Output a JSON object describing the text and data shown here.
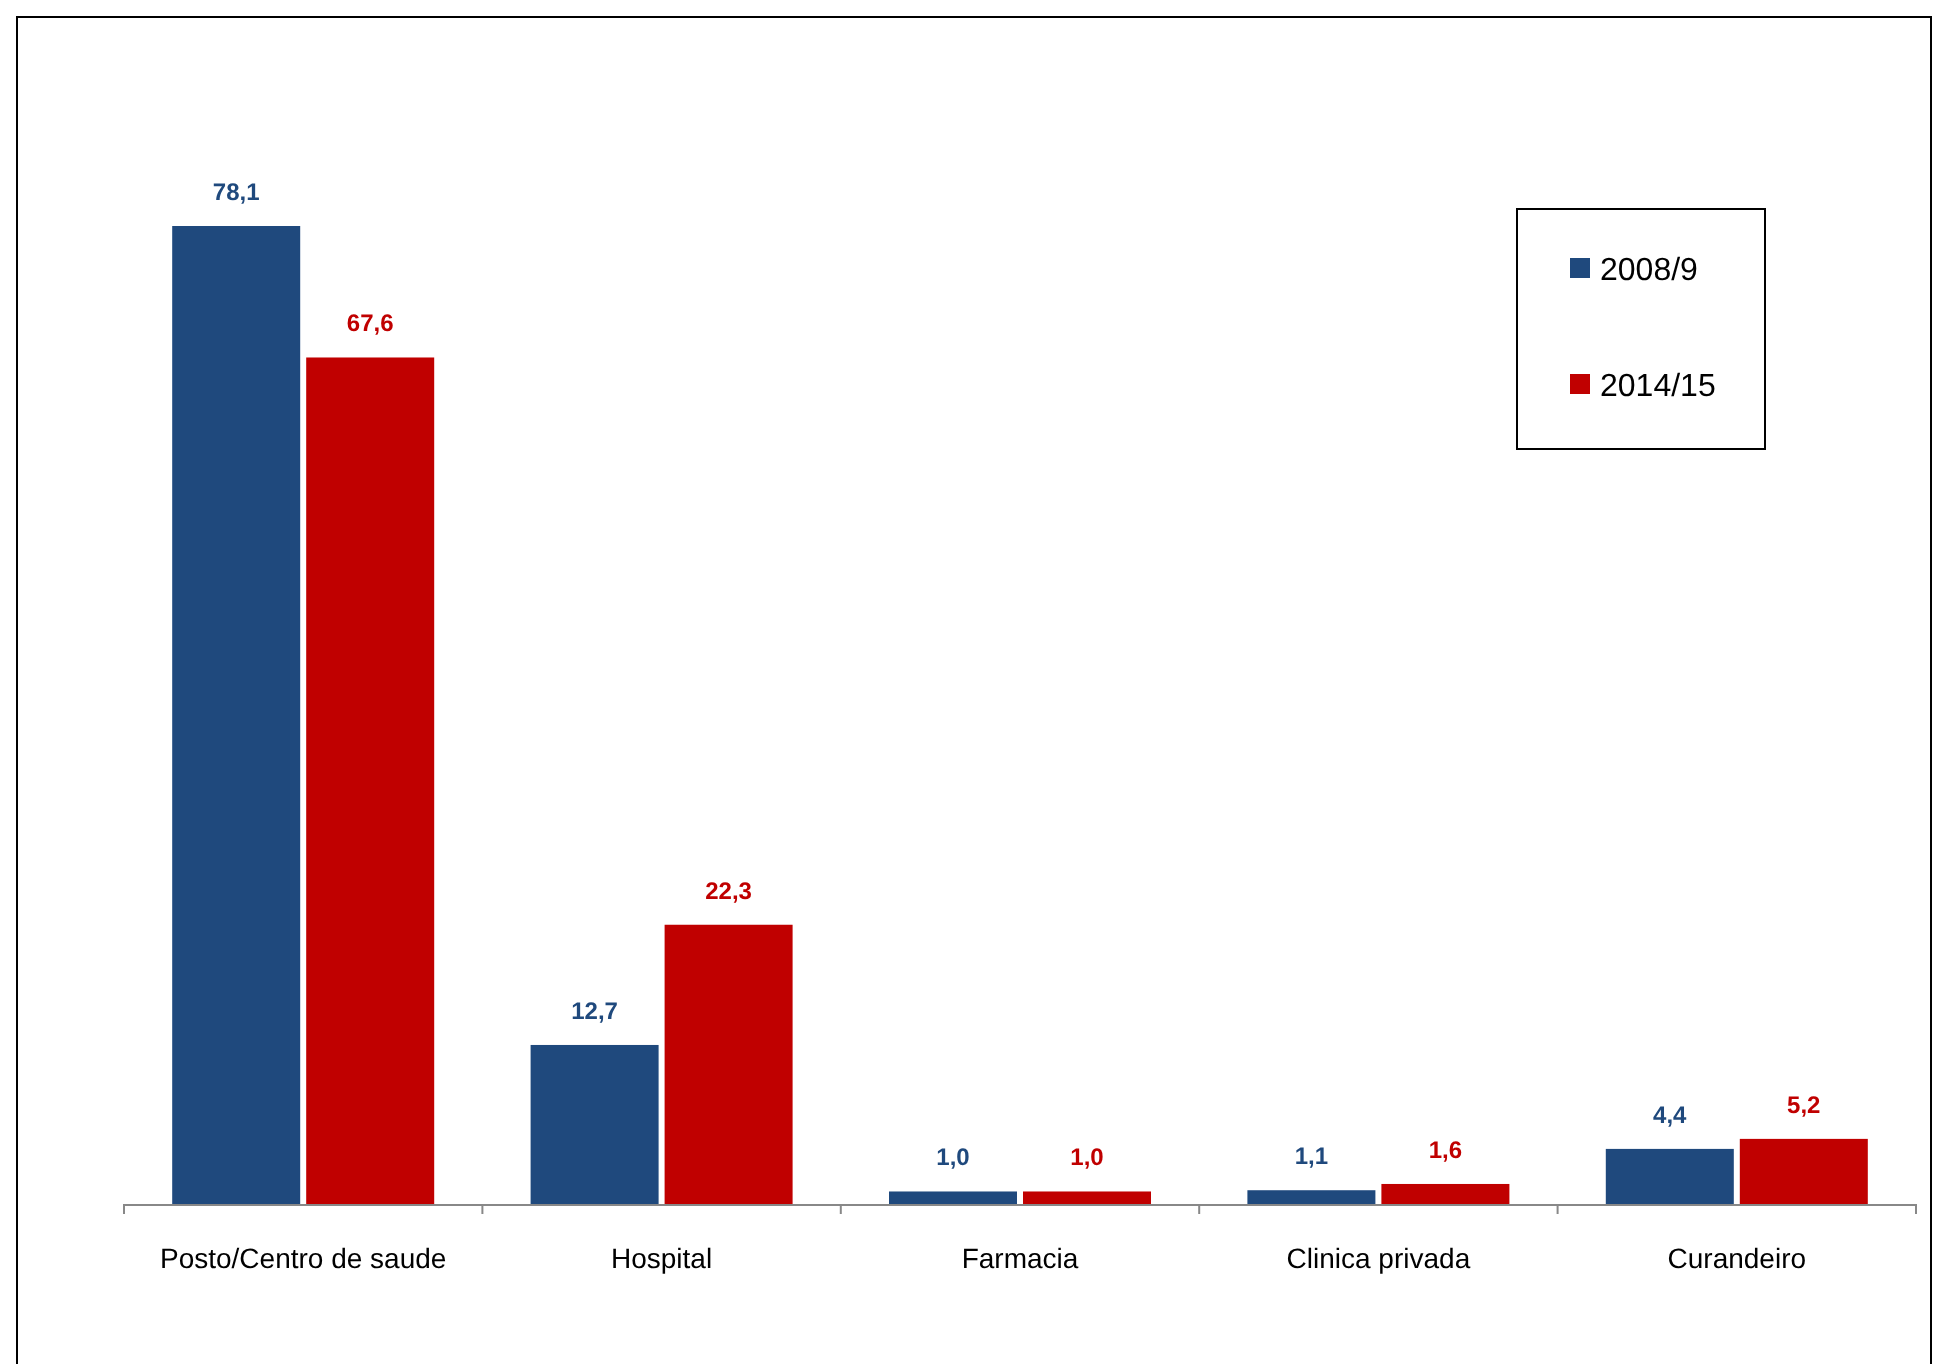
{
  "chart_data": {
    "type": "bar",
    "categories": [
      "Posto/Centro de saude",
      "Hospital",
      "Farmacia",
      "Clinica privada",
      "Curandeiro"
    ],
    "series": [
      {
        "name": "2008/9",
        "color": "#1f497d",
        "values": [
          78.1,
          12.7,
          1.0,
          1.1,
          4.4
        ],
        "value_labels": [
          "78,1",
          "12,7",
          "1,0",
          "1,1",
          "4,4"
        ]
      },
      {
        "name": "2014/15",
        "color": "#c00000",
        "values": [
          67.6,
          22.3,
          1.0,
          1.6,
          5.2
        ],
        "value_labels": [
          "67,6",
          "22,3",
          "1,0",
          "1,6",
          "5,2"
        ]
      }
    ],
    "legend": "top right"
  }
}
